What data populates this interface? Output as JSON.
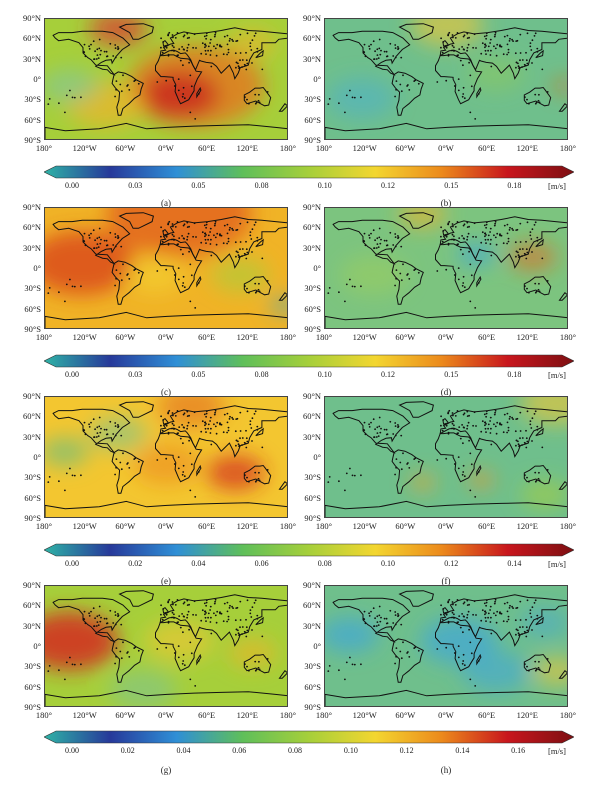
{
  "chart_data": [
    {
      "type": "heatmap",
      "panel": "a",
      "title": "(a)",
      "colorbar_row": 0
    },
    {
      "type": "heatmap",
      "panel": "b",
      "title": "(b)",
      "colorbar_row": 0
    },
    {
      "type": "heatmap",
      "panel": "c",
      "title": "(c)",
      "colorbar_row": 1
    },
    {
      "type": "heatmap",
      "panel": "d",
      "title": "(d)",
      "colorbar_row": 1
    },
    {
      "type": "heatmap",
      "panel": "e",
      "title": "(e)",
      "colorbar_row": 2
    },
    {
      "type": "heatmap",
      "panel": "f",
      "title": "(f)",
      "colorbar_row": 2
    },
    {
      "type": "heatmap",
      "panel": "g",
      "title": "(g)",
      "colorbar_row": 3
    },
    {
      "type": "heatmap",
      "panel": "h",
      "title": "(h)",
      "colorbar_row": 3
    }
  ],
  "lat_labels": [
    "90°N",
    "60°N",
    "30°N",
    "0°",
    "30°S",
    "60°S",
    "90°S"
  ],
  "lon_labels": [
    "180°",
    "120°W",
    "60°W",
    "0°W",
    "60°E",
    "120°E",
    "180°"
  ],
  "colorbars": [
    {
      "ticks": [
        "0.00",
        "0.03",
        "0.05",
        "0.08",
        "0.10",
        "0.12",
        "0.15",
        "0.18"
      ],
      "unit": "[m/s]"
    },
    {
      "ticks": [
        "0.00",
        "0.03",
        "0.05",
        "0.08",
        "0.10",
        "0.12",
        "0.15",
        "0.18"
      ],
      "unit": "[m/s]"
    },
    {
      "ticks": [
        "0.00",
        "0.02",
        "0.04",
        "0.06",
        "0.08",
        "0.10",
        "0.12",
        "0.14"
      ],
      "unit": "[m/s]"
    },
    {
      "ticks": [
        "0.00",
        "0.02",
        "0.04",
        "0.06",
        "0.08",
        "0.10",
        "0.12",
        "0.14",
        "0.16"
      ],
      "unit": "[m/s]"
    }
  ],
  "colors": {
    "scale": [
      "#2fb3a6",
      "#27399a",
      "#2f8fd6",
      "#5fbf5a",
      "#a6cf3a",
      "#f3d630",
      "#ec8a1c",
      "#c8161d",
      "#7d0f12"
    ],
    "land_outline": "#111111",
    "station_dot": "#111111"
  }
}
